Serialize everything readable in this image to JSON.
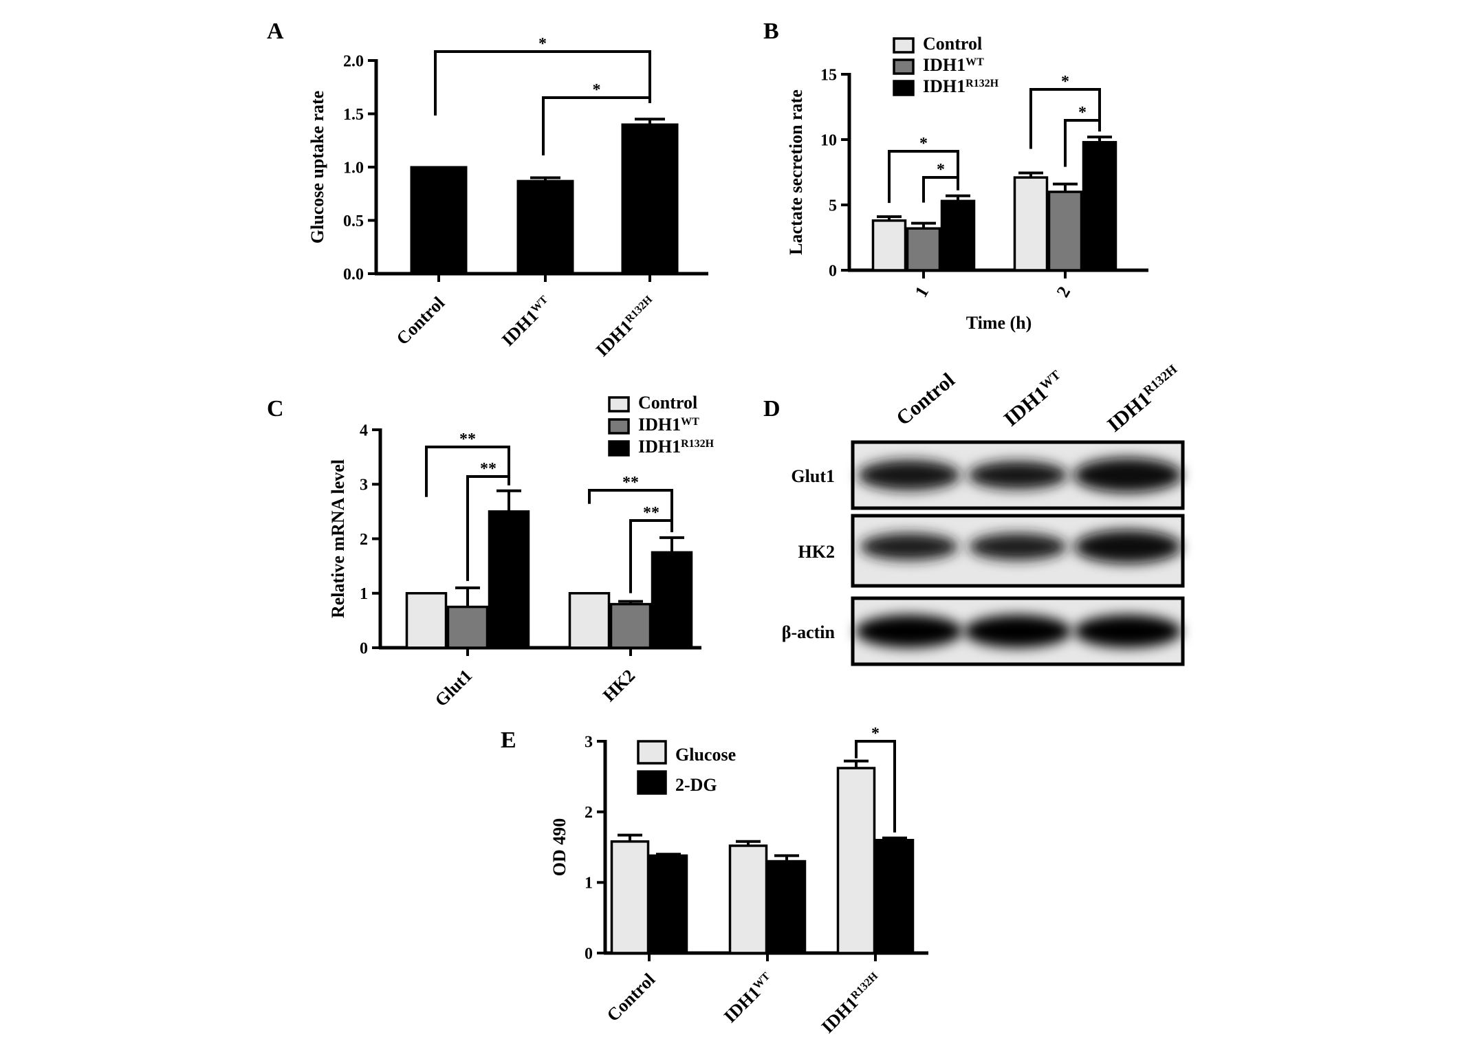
{
  "panel_letters": [
    "A",
    "B",
    "C",
    "D",
    "E"
  ],
  "colors": {
    "control": "#e8e8e8",
    "wt": "#7a7a7a",
    "mut": "#000000",
    "glucose": "#e8e8e8",
    "dg": "#000000"
  },
  "chart_data": [
    {
      "panel": "A",
      "type": "bar",
      "ylabel": "Glucose uptake rate",
      "xlabel": "",
      "ylim": [
        0,
        2.0
      ],
      "yticks": [
        "0.0",
        "0.5",
        "1.0",
        "1.5",
        "2.0"
      ],
      "categories": [
        "Control",
        "IDH1",
        "IDH1"
      ],
      "category_superscripts": [
        "",
        "WT",
        "R132H"
      ],
      "values": [
        1.0,
        0.87,
        1.4
      ],
      "errors": [
        0,
        0.03,
        0.05
      ],
      "significance": [
        {
          "from": 0,
          "to": 2,
          "label": "*"
        },
        {
          "from": 1,
          "to": 2,
          "label": "*"
        }
      ]
    },
    {
      "panel": "B",
      "type": "bar",
      "ylabel": "Lactate secretion rate",
      "xlabel": "Time (h)",
      "ylim": [
        0,
        15
      ],
      "yticks": [
        "0",
        "5",
        "10",
        "15"
      ],
      "categories": [
        "1",
        "2"
      ],
      "legend": [
        "Control",
        "IDH1",
        "IDH1"
      ],
      "legend_superscripts": [
        "",
        "WT",
        "R132H"
      ],
      "legend_position": "top-left",
      "series": [
        {
          "name": "Control",
          "values": [
            3.8,
            7.1
          ],
          "errors": [
            0.3,
            0.35
          ]
        },
        {
          "name": "IDH1 WT",
          "values": [
            3.2,
            6.0
          ],
          "errors": [
            0.4,
            0.6
          ]
        },
        {
          "name": "IDH1 R132H",
          "values": [
            5.3,
            9.8
          ],
          "errors": [
            0.4,
            0.4
          ]
        }
      ],
      "significance": [
        {
          "cat": 0,
          "from": 0,
          "to": 2,
          "label": "*"
        },
        {
          "cat": 0,
          "from": 1,
          "to": 2,
          "label": "*"
        },
        {
          "cat": 1,
          "from": 0,
          "to": 2,
          "label": "*"
        },
        {
          "cat": 1,
          "from": 1,
          "to": 2,
          "label": "*"
        }
      ]
    },
    {
      "panel": "C",
      "type": "bar",
      "ylabel": "Relative mRNA level",
      "xlabel": "",
      "ylim": [
        0,
        4
      ],
      "yticks": [
        "0",
        "1",
        "2",
        "3",
        "4"
      ],
      "categories": [
        "Glut1",
        "HK2"
      ],
      "legend": [
        "Control",
        "IDH1",
        "IDH1"
      ],
      "legend_superscripts": [
        "",
        "WT",
        "R132H"
      ],
      "legend_position": "top-right",
      "series": [
        {
          "name": "Control",
          "values": [
            1.0,
            1.0
          ],
          "errors": [
            0,
            0
          ]
        },
        {
          "name": "IDH1 WT",
          "values": [
            0.75,
            0.8
          ],
          "errors": [
            0.35,
            0.05
          ]
        },
        {
          "name": "IDH1 R132H",
          "values": [
            2.5,
            1.75
          ],
          "errors": [
            0.38,
            0.27
          ]
        }
      ],
      "significance": [
        {
          "cat": 0,
          "from": 0,
          "to": 2,
          "label": "**"
        },
        {
          "cat": 0,
          "from": 1,
          "to": 2,
          "label": "**"
        },
        {
          "cat": 1,
          "from": 0,
          "to": 2,
          "label": "**"
        },
        {
          "cat": 1,
          "from": 1,
          "to": 2,
          "label": "**"
        }
      ]
    },
    {
      "panel": "E",
      "type": "bar",
      "ylabel": "OD 490",
      "xlabel": "",
      "ylim": [
        0,
        3
      ],
      "yticks": [
        "0",
        "1",
        "2",
        "3"
      ],
      "categories": [
        "Control",
        "IDH1",
        "IDH1"
      ],
      "category_superscripts": [
        "",
        "WT",
        "R132H"
      ],
      "legend": [
        "Glucose",
        "2-DG"
      ],
      "legend_position": "top-left",
      "series": [
        {
          "name": "Glucose",
          "values": [
            1.58,
            1.52,
            2.62
          ],
          "errors": [
            0.09,
            0.06,
            0.1
          ]
        },
        {
          "name": "2-DG",
          "values": [
            1.38,
            1.3,
            1.6
          ],
          "errors": [
            0.02,
            0.08,
            0.03
          ]
        }
      ],
      "significance": [
        {
          "cat": 2,
          "from": 0,
          "to": 1,
          "label": "*"
        }
      ]
    }
  ],
  "blot": {
    "panel": "D",
    "lanes": [
      "Control",
      "IDH1",
      "IDH1"
    ],
    "lane_superscripts": [
      "",
      "WT",
      "R132H"
    ],
    "rows": [
      "Glut1",
      "HK2",
      "β-actin"
    ],
    "intensity": [
      [
        0.75,
        0.65,
        0.95
      ],
      [
        0.6,
        0.6,
        0.9
      ],
      [
        1.0,
        1.0,
        1.0
      ]
    ]
  }
}
